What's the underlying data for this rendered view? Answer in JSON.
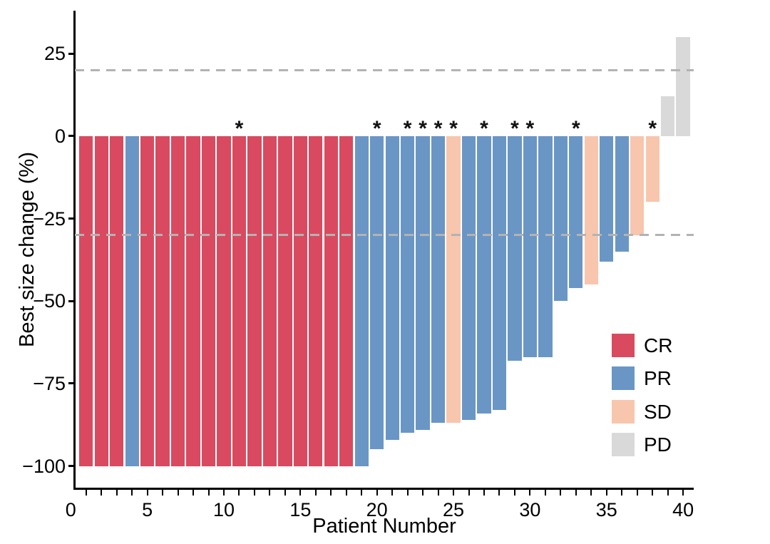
{
  "figure": {
    "x_axis": {
      "title": "Patient Number",
      "tick_labels": [
        "0",
        "5",
        "10",
        "15",
        "20",
        "25",
        "30",
        "35",
        "40"
      ],
      "minor_ticks_every": 1,
      "range": [
        0,
        40
      ]
    },
    "y_axis": {
      "title": "Best size change (%)",
      "tick_labels": [
        "25",
        "0",
        "−25",
        "−50",
        "−75",
        "−100"
      ],
      "tick_values": [
        25,
        0,
        -25,
        -50,
        -75,
        -100
      ]
    },
    "reference_lines": [
      {
        "value": 20,
        "style": "dashed",
        "color": "#b3b3b3"
      },
      {
        "value": -30,
        "style": "dashed",
        "color": "#b3b3b3"
      }
    ],
    "legend": {
      "position": "inside-right",
      "items": [
        {
          "label": "CR",
          "color": "#d94a60"
        },
        {
          "label": "PR",
          "color": "#6a96c5"
        },
        {
          "label": "SD",
          "color": "#f7c6ad"
        },
        {
          "label": "PD",
          "color": "#d9d9d9"
        }
      ]
    },
    "annotation_symbol": "*"
  },
  "chart_data": {
    "type": "bar",
    "subtype": "waterfall",
    "title": "",
    "xlabel": "Patient Number",
    "ylabel": "Best size change (%)",
    "xlim": [
      0,
      41
    ],
    "ylim": [
      -107,
      38
    ],
    "grid": false,
    "thresholds": [
      20,
      -30
    ],
    "series_colors": {
      "CR": "#d94a60",
      "PR": "#6a96c5",
      "SD": "#f7c6ad",
      "PD": "#d9d9d9"
    },
    "patients": [
      {
        "patient": 1,
        "change": -100,
        "response": "CR",
        "starred": false
      },
      {
        "patient": 2,
        "change": -100,
        "response": "CR",
        "starred": false
      },
      {
        "patient": 3,
        "change": -100,
        "response": "CR",
        "starred": false
      },
      {
        "patient": 4,
        "change": -100,
        "response": "PR",
        "starred": false
      },
      {
        "patient": 5,
        "change": -100,
        "response": "CR",
        "starred": false
      },
      {
        "patient": 6,
        "change": -100,
        "response": "CR",
        "starred": false
      },
      {
        "patient": 7,
        "change": -100,
        "response": "CR",
        "starred": false
      },
      {
        "patient": 8,
        "change": -100,
        "response": "CR",
        "starred": false
      },
      {
        "patient": 9,
        "change": -100,
        "response": "CR",
        "starred": false
      },
      {
        "patient": 10,
        "change": -100,
        "response": "CR",
        "starred": false
      },
      {
        "patient": 11,
        "change": -100,
        "response": "CR",
        "starred": true
      },
      {
        "patient": 12,
        "change": -100,
        "response": "CR",
        "starred": false
      },
      {
        "patient": 13,
        "change": -100,
        "response": "CR",
        "starred": false
      },
      {
        "patient": 14,
        "change": -100,
        "response": "CR",
        "starred": false
      },
      {
        "patient": 15,
        "change": -100,
        "response": "CR",
        "starred": false
      },
      {
        "patient": 16,
        "change": -100,
        "response": "CR",
        "starred": false
      },
      {
        "patient": 17,
        "change": -100,
        "response": "CR",
        "starred": false
      },
      {
        "patient": 18,
        "change": -100,
        "response": "CR",
        "starred": false
      },
      {
        "patient": 19,
        "change": -100,
        "response": "PR",
        "starred": false
      },
      {
        "patient": 20,
        "change": -95,
        "response": "PR",
        "starred": true
      },
      {
        "patient": 21,
        "change": -92,
        "response": "PR",
        "starred": false
      },
      {
        "patient": 22,
        "change": -90,
        "response": "PR",
        "starred": true
      },
      {
        "patient": 23,
        "change": -89,
        "response": "PR",
        "starred": true
      },
      {
        "patient": 24,
        "change": -87,
        "response": "PR",
        "starred": true
      },
      {
        "patient": 25,
        "change": -87,
        "response": "SD",
        "starred": true
      },
      {
        "patient": 26,
        "change": -86,
        "response": "PR",
        "starred": false
      },
      {
        "patient": 27,
        "change": -84,
        "response": "PR",
        "starred": true
      },
      {
        "patient": 28,
        "change": -83,
        "response": "PR",
        "starred": false
      },
      {
        "patient": 29,
        "change": -68,
        "response": "PR",
        "starred": true
      },
      {
        "patient": 30,
        "change": -67,
        "response": "PR",
        "starred": true
      },
      {
        "patient": 31,
        "change": -67,
        "response": "PR",
        "starred": false
      },
      {
        "patient": 32,
        "change": -50,
        "response": "PR",
        "starred": false
      },
      {
        "patient": 33,
        "change": -46,
        "response": "PR",
        "starred": true
      },
      {
        "patient": 34,
        "change": -45,
        "response": "SD",
        "starred": false
      },
      {
        "patient": 35,
        "change": -38,
        "response": "PR",
        "starred": false
      },
      {
        "patient": 36,
        "change": -35,
        "response": "PR",
        "starred": false
      },
      {
        "patient": 37,
        "change": -30,
        "response": "SD",
        "starred": false
      },
      {
        "patient": 38,
        "change": -20,
        "response": "SD",
        "starred": true
      },
      {
        "patient": 39,
        "change": 12,
        "response": "PD",
        "starred": false
      },
      {
        "patient": 40,
        "change": 30,
        "response": "PD",
        "starred": false
      }
    ]
  }
}
